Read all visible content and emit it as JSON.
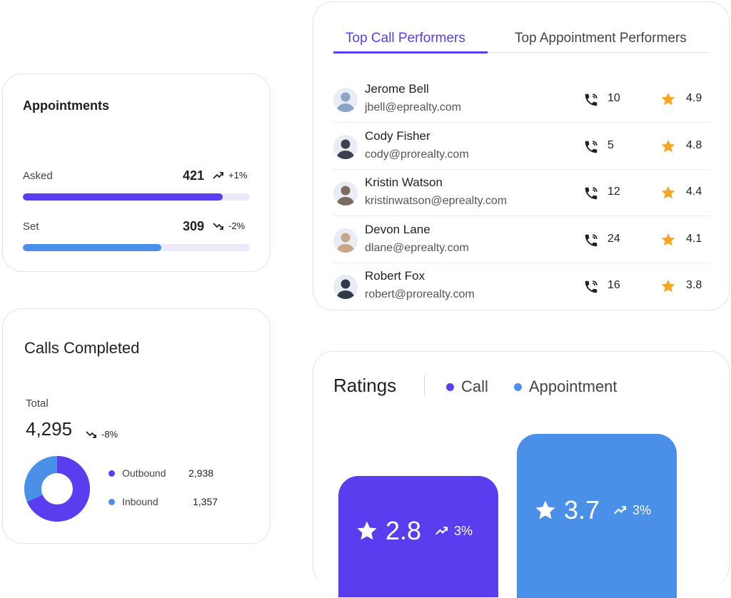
{
  "colors": {
    "primary": "#5b3df0",
    "secondary": "#4a90e9",
    "track": "#ece9fb",
    "star": "#f5a623"
  },
  "appointments": {
    "title": "Appointments",
    "asked": {
      "label": "Asked",
      "value": "421",
      "trend": "+1%",
      "direction": "up",
      "fraction": 0.88
    },
    "set": {
      "label": "Set",
      "value": "309",
      "trend": "-2%",
      "direction": "down",
      "fraction": 0.61
    }
  },
  "calls": {
    "title": "Calls Completed",
    "total_label": "Total",
    "total": "4,295",
    "trend": "-8%",
    "outbound": {
      "label": "Outbound",
      "value": "2,938",
      "count": 2938
    },
    "inbound": {
      "label": "Inbound",
      "value": "1,357",
      "count": 1357
    }
  },
  "performers": {
    "tabs": [
      "Top Call Performers",
      "Top Appointment Performers"
    ],
    "active_tab": 0,
    "rows": [
      {
        "name": "Jerome Bell",
        "email": "jbell@eprealty.com",
        "calls": "10",
        "rating": "4.9"
      },
      {
        "name": "Cody Fisher",
        "email": "cody@prorealty.com",
        "calls": "5",
        "rating": "4.8"
      },
      {
        "name": "Kristin Watson",
        "email": "kristinwatson@eprealty.com",
        "calls": "12",
        "rating": "4.4"
      },
      {
        "name": "Devon Lane",
        "email": "dlane@eprealty.com",
        "calls": "24",
        "rating": "4.1"
      },
      {
        "name": "Robert Fox",
        "email": "robert@prorealty.com",
        "calls": "16",
        "rating": "3.8"
      }
    ]
  },
  "ratings": {
    "title": "Ratings",
    "legend": [
      "Call",
      "Appointment"
    ],
    "call": {
      "value": "2.8",
      "trend": "3%"
    },
    "appointment": {
      "value": "3.7",
      "trend": "3%"
    }
  }
}
